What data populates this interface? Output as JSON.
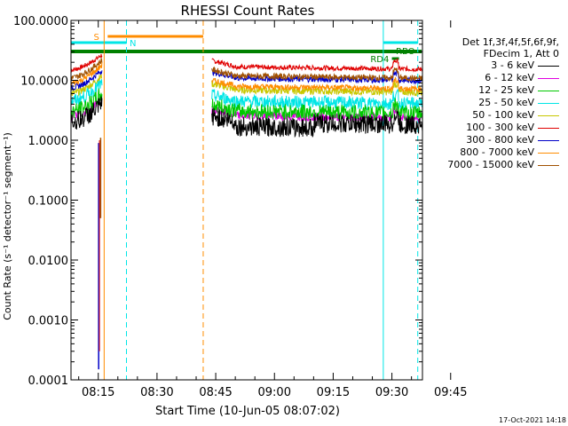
{
  "chart_data": {
    "type": "line",
    "title": "RHESSI Count Rates",
    "xlabel": "Start Time (10-Jun-05 08:07:02)",
    "ylabel": "Count Rate (s⁻¹ detector⁻¹ segment⁻¹)",
    "yscale": "log",
    "ylim": [
      0.0001,
      100
    ],
    "xlim_minutes": [
      8.0333,
      97.8
    ],
    "x_ticks": [
      "08:15",
      "08:30",
      "08:45",
      "09:00",
      "09:15",
      "09:30",
      "09:45"
    ],
    "y_ticks": [
      "100.0000",
      "10.0000",
      "1.0000",
      "0.1000",
      "0.0100",
      "0.0010",
      "0.0001"
    ],
    "legend": {
      "header": [
        "Det 1f,3f,4f,5f,6f,9f,",
        "FDecim 1, Att 0"
      ],
      "entries": [
        {
          "label": "3 - 6 keV",
          "color": "#000000"
        },
        {
          "label": "6 - 12 keV",
          "color": "#e000e0"
        },
        {
          "label": "12 - 25 keV",
          "color": "#00c800"
        },
        {
          "label": "25 - 50 keV",
          "color": "#00e6e6"
        },
        {
          "label": "50 - 100 keV",
          "color": "#c8c800"
        },
        {
          "label": "100 - 300 keV",
          "color": "#e00000"
        },
        {
          "label": "300 - 800 keV",
          "color": "#0000c8"
        },
        {
          "label": "800 - 7000 keV",
          "color": "#ff8c00"
        },
        {
          "label": "7000 - 15000 keV",
          "color": "#a05000"
        }
      ]
    },
    "series_levels": {
      "segment_minutes": [
        [
          8.0333,
          16.0
        ],
        [
          44.0,
          97.8
        ]
      ],
      "seg1_start": [
        2.0,
        2.5,
        3.0,
        4.5,
        6.0,
        15.0,
        7.5,
        9.0,
        11.0
      ],
      "seg1_end": [
        4.0,
        5.0,
        6.0,
        9.0,
        12.0,
        27.0,
        15.0,
        18.0,
        22.0
      ],
      "seg2": [
        2.0,
        2.6,
        3.1,
        4.5,
        7.0,
        17.0,
        11.0,
        8.0,
        12.0
      ]
    },
    "annotations": {
      "S": {
        "label": "S",
        "color": "#ff8c00"
      },
      "N": {
        "label": "N",
        "color": "#00e6e6"
      },
      "RD4": {
        "label": "RD4",
        "color": "#008000"
      },
      "RBO": {
        "label": "RBO",
        "color": "#008000"
      }
    },
    "footer": "17-Oct-2021 14:18"
  }
}
